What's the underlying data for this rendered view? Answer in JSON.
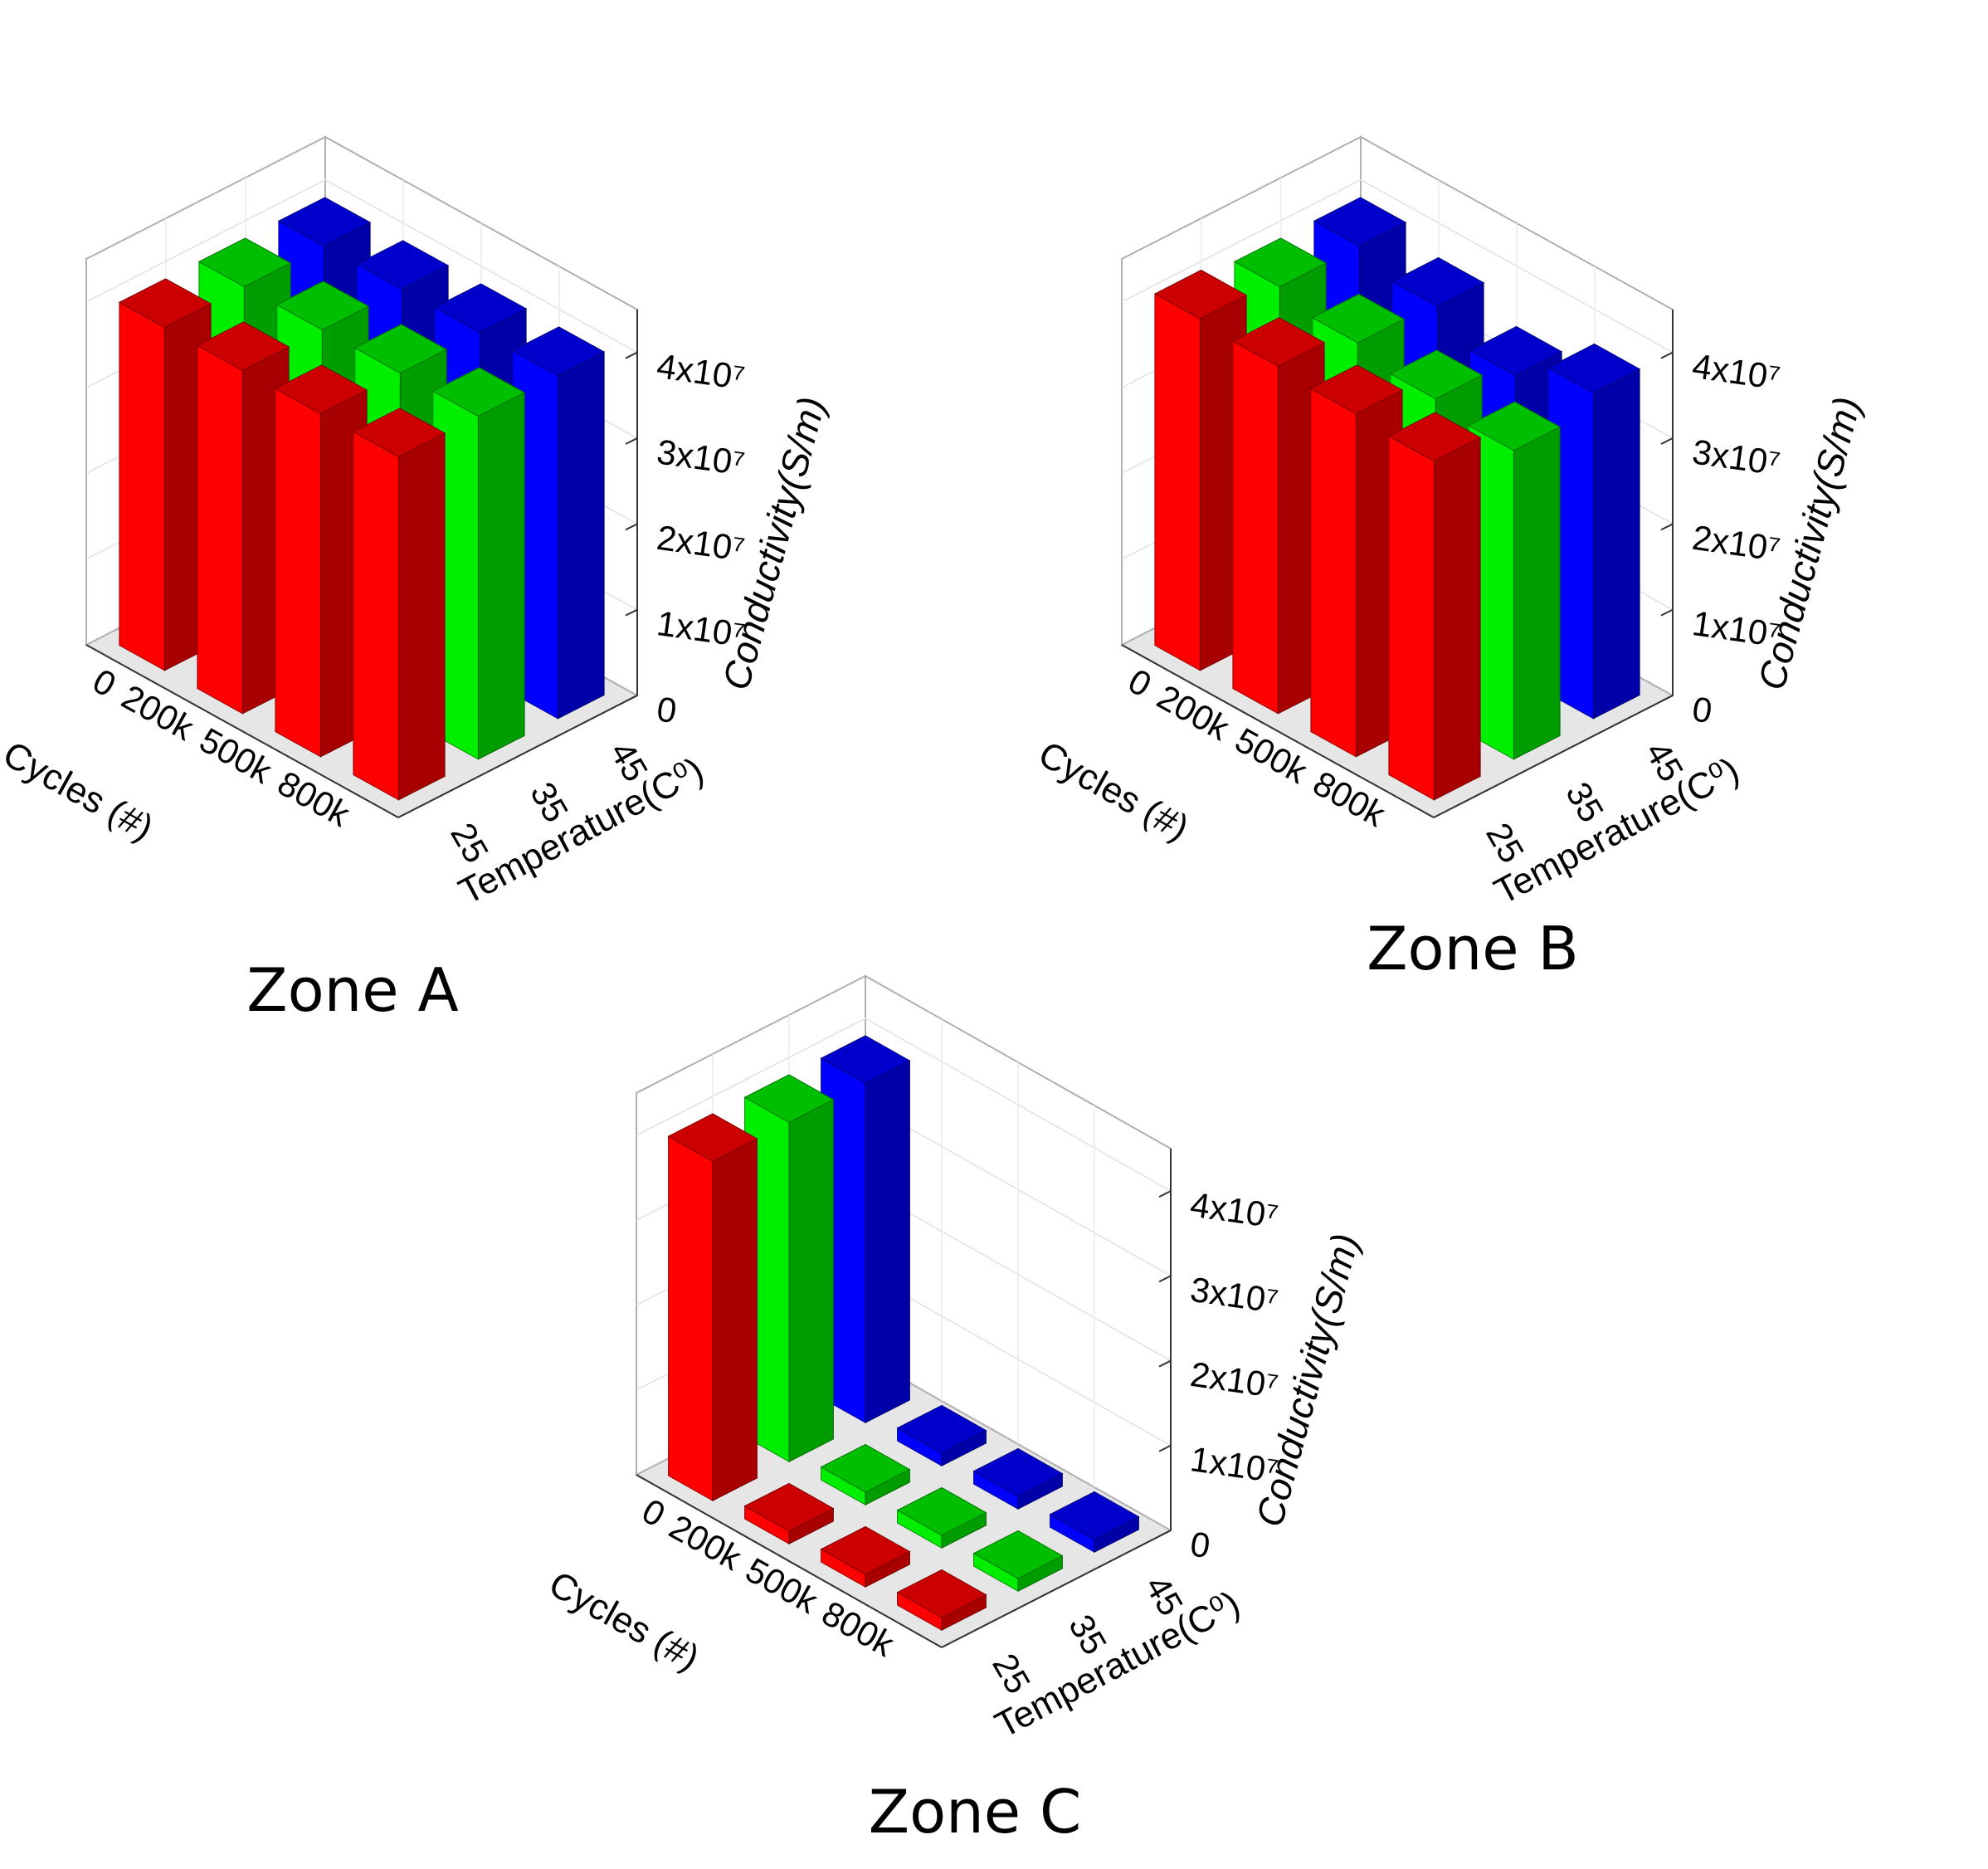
{
  "colors": {
    "t25": "#ff0000",
    "t35": "#00ee00",
    "t45": "#0000ff"
  },
  "chart_data": [
    {
      "type": "bar3d",
      "title": "Zone A",
      "xlabel": "Cycles (#)",
      "ylabel": "Temperature(C⁰)",
      "zlabel": "Conductivity(S/m)",
      "cycles": [
        "0",
        "200k",
        "500k",
        "800k"
      ],
      "temperatures": [
        "25",
        "35",
        "45"
      ],
      "zlim": [
        0,
        45000000
      ],
      "zticks": [
        "0",
        "1x10⁷",
        "2x10⁷",
        "3x10⁷",
        "4x10⁷"
      ],
      "series": [
        {
          "name": "25",
          "values": [
            40000000,
            40000000,
            40000000,
            40000000
          ]
        },
        {
          "name": "35",
          "values": [
            40000000,
            40000000,
            40000000,
            40000000
          ]
        },
        {
          "name": "45",
          "values": [
            40000000,
            40000000,
            40000000,
            40000000
          ]
        }
      ]
    },
    {
      "type": "bar3d",
      "title": "Zone B",
      "xlabel": "Cycles (#)",
      "ylabel": "Temperature(C⁰)",
      "zlabel": "Conductivity(S/m)",
      "cycles": [
        "0",
        "200k",
        "500k",
        "800k"
      ],
      "temperatures": [
        "25",
        "35",
        "45"
      ],
      "zlim": [
        0,
        45000000
      ],
      "zticks": [
        "0",
        "1x10⁷",
        "2x10⁷",
        "3x10⁷",
        "4x10⁷"
      ],
      "series": [
        {
          "name": "25",
          "values": [
            41000000,
            40500000,
            40000000,
            39500000
          ]
        },
        {
          "name": "35",
          "values": [
            40000000,
            38500000,
            37000000,
            36000000
          ]
        },
        {
          "name": "45",
          "values": [
            40000000,
            38000000,
            35000000,
            38000000
          ]
        }
      ]
    },
    {
      "type": "bar3d",
      "title": "Zone C",
      "xlabel": "Cycles (#)",
      "ylabel": "Temperature(C⁰)",
      "zlabel": "Conductivity(S/m)",
      "cycles": [
        "0",
        "200k",
        "500k",
        "800k"
      ],
      "temperatures": [
        "25",
        "35",
        "45"
      ],
      "zlim": [
        0,
        45000000
      ],
      "zticks": [
        "0",
        "1x10⁷",
        "2x10⁷",
        "3x10⁷",
        "4x10⁷"
      ],
      "series": [
        {
          "name": "25",
          "values": [
            40000000,
            1500000,
            1500000,
            1500000
          ]
        },
        {
          "name": "35",
          "values": [
            40000000,
            1500000,
            1500000,
            1500000
          ]
        },
        {
          "name": "45",
          "values": [
            40000000,
            1500000,
            1500000,
            1500000
          ]
        }
      ]
    }
  ]
}
